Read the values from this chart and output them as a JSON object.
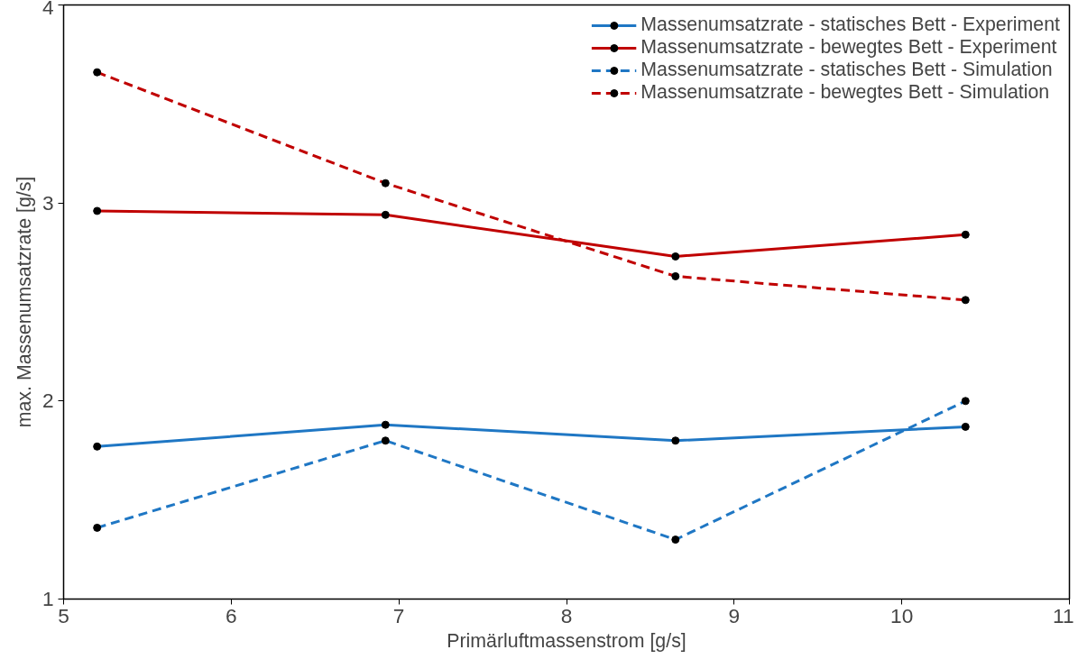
{
  "chart_data": {
    "type": "line",
    "xlabel": "Primärluftmassenstrom [g/s]",
    "ylabel": "max. Massenumsatzrate [g/s]",
    "x": [
      5.2,
      6.92,
      8.65,
      10.38
    ],
    "xlim": [
      5,
      11
    ],
    "xticks": [
      5,
      6,
      7,
      8,
      9,
      10,
      11
    ],
    "ylim": [
      1,
      4
    ],
    "yticks": [
      1,
      2,
      3,
      4
    ],
    "grid": false,
    "legend": "top right",
    "marker": "circle",
    "series": [
      {
        "name": "Massenumsatzrate - statisches Bett - Experiment",
        "color": "#1f77c4",
        "line_style": "solid",
        "values": [
          1.77,
          1.88,
          1.8,
          1.87
        ]
      },
      {
        "name": "Massenumsatzrate - bewegtes Bett - Experiment",
        "color": "#c00000",
        "line_style": "solid",
        "values": [
          2.96,
          2.94,
          2.73,
          2.84
        ]
      },
      {
        "name": "Massenumsatzrate - statisches Bett - Simulation",
        "color": "#1f77c4",
        "line_style": "dashed",
        "values": [
          1.36,
          1.8,
          1.3,
          2.0
        ]
      },
      {
        "name": "Massenumsatzrate - bewegtes Bett - Simulation",
        "color": "#c00000",
        "line_style": "dashed",
        "values": [
          3.66,
          3.1,
          2.63,
          2.51
        ]
      }
    ]
  }
}
